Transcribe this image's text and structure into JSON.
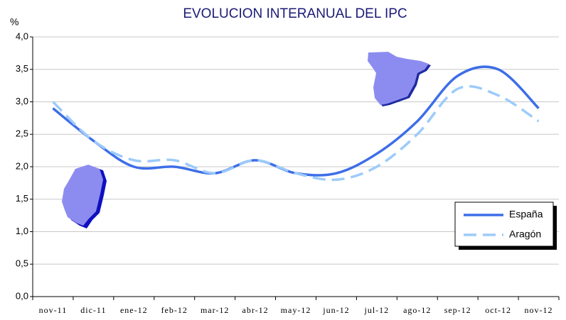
{
  "chart_data": {
    "type": "line",
    "title": "EVOLUCION INTERANUAL DEL IPC",
    "ylabel": "%",
    "categories": [
      "nov-11",
      "dic-11",
      "ene-12",
      "feb-12",
      "mar-12",
      "abr-12",
      "may-12",
      "jun-12",
      "jul-12",
      "ago-12",
      "sep-12",
      "oct-12",
      "nov-12"
    ],
    "series": [
      {
        "name": "España",
        "color": "#3d6ee8",
        "dashed": false,
        "values": [
          2.9,
          2.4,
          2.0,
          2.0,
          1.9,
          2.1,
          1.9,
          1.9,
          2.2,
          2.7,
          3.4,
          3.5,
          2.9
        ]
      },
      {
        "name": "Aragón",
        "color": "#9dcbfa",
        "dashed": true,
        "values": [
          3.0,
          2.4,
          2.1,
          2.1,
          1.9,
          2.1,
          1.9,
          1.8,
          2.0,
          2.5,
          3.2,
          3.1,
          2.7
        ]
      }
    ],
    "ylim": [
      0,
      4
    ],
    "yticks": [
      {
        "value": 0,
        "label": "0,0"
      },
      {
        "value": 0.5,
        "label": "0,5"
      },
      {
        "value": 1,
        "label": "1,0"
      },
      {
        "value": 1.5,
        "label": "1,5"
      },
      {
        "value": 2,
        "label": "2,0"
      },
      {
        "value": 2.5,
        "label": "2,5"
      },
      {
        "value": 3,
        "label": "3,0"
      },
      {
        "value": 3.5,
        "label": "3,5"
      },
      {
        "value": 4,
        "label": "4,0"
      }
    ],
    "grid": true,
    "legend": "lower right"
  }
}
